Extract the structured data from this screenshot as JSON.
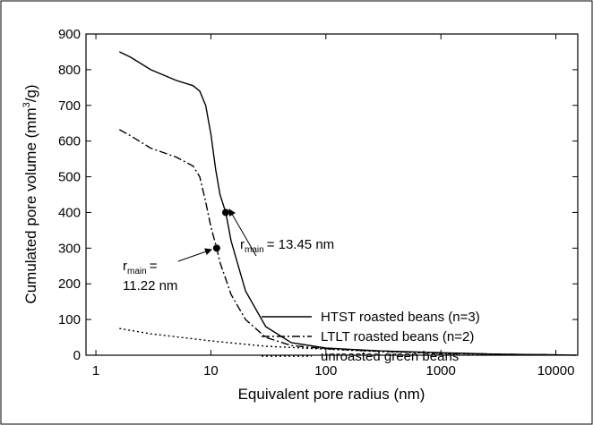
{
  "chart_data": {
    "type": "line",
    "x_label": "Equivalent pore radius (nm)",
    "y_label": {
      "before": "Cumulated pore volume (mm",
      "sup": "3",
      "after": "/g)"
    },
    "xscale": "log",
    "xlim": [
      0.82,
      15500
    ],
    "xticks": [
      1,
      10,
      100,
      1000,
      10000
    ],
    "ylim": [
      0,
      900
    ],
    "yticks": [
      0,
      100,
      200,
      300,
      400,
      500,
      600,
      700,
      800,
      900
    ],
    "legend": "right",
    "series": [
      {
        "name": "HTST roasted beans (n=3)",
        "color": "#000000",
        "style": "solid",
        "x": [
          1.6,
          2,
          3,
          5,
          7,
          8,
          9,
          10,
          11,
          12,
          13.45,
          15,
          20,
          30,
          50,
          100,
          300,
          1000,
          3000,
          10000,
          15000
        ],
        "values": [
          850,
          835,
          800,
          770,
          755,
          740,
          700,
          620,
          520,
          450,
          400,
          320,
          180,
          80,
          35,
          20,
          12,
          7,
          3,
          1,
          0
        ]
      },
      {
        "name": "LTLT roasted beans (n=2)",
        "color": "#000000",
        "style": "dashdot",
        "x": [
          1.6,
          2,
          3,
          5,
          7,
          8,
          9,
          10,
          11.22,
          12,
          15,
          20,
          30,
          50,
          100,
          300,
          1000,
          3000,
          10000
        ],
        "values": [
          632,
          615,
          580,
          555,
          530,
          500,
          430,
          360,
          300,
          260,
          170,
          100,
          50,
          27,
          18,
          11,
          6,
          3,
          1
        ]
      },
      {
        "name": "unroasted green beans",
        "color": "#000000",
        "style": "dotted",
        "x": [
          1.6,
          3,
          10,
          30,
          100,
          300,
          1000,
          3000,
          10000
        ],
        "values": [
          75,
          60,
          40,
          25,
          17,
          10,
          5,
          2,
          1
        ]
      }
    ],
    "points": [
      {
        "x": 13.45,
        "y": 400
      },
      {
        "x": 11.22,
        "y": 300
      }
    ],
    "annotations": [
      {
        "symbol": "r",
        "subscript": "main",
        "lines": [
          "= 13.45 nm"
        ]
      },
      {
        "symbol": "r",
        "subscript": "main",
        "lines": [
          "=",
          "11.22 nm"
        ]
      }
    ]
  }
}
